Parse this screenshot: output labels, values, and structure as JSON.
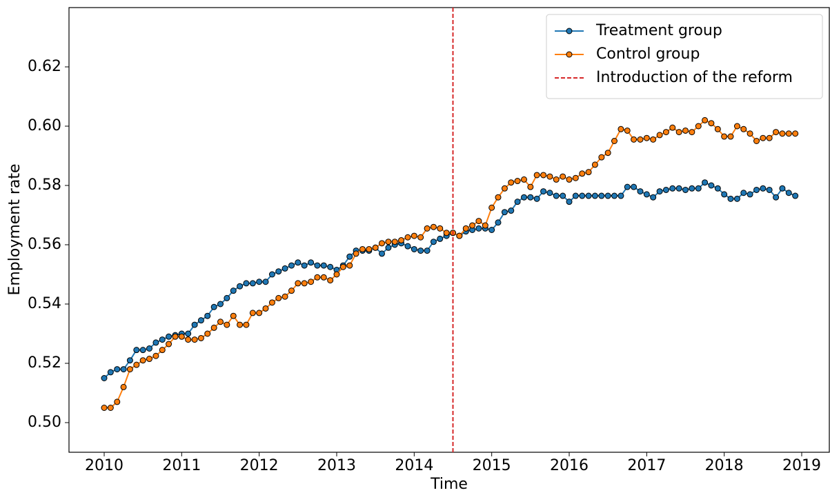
{
  "chart_data": {
    "type": "line",
    "x_label": "Time",
    "y_label": "Employment rate",
    "x": [
      2010,
      2010.083,
      2010.167,
      2010.25,
      2010.333,
      2010.417,
      2010.5,
      2010.583,
      2010.667,
      2010.75,
      2010.833,
      2010.917,
      2011,
      2011.083,
      2011.167,
      2011.25,
      2011.333,
      2011.417,
      2011.5,
      2011.583,
      2011.667,
      2011.75,
      2011.833,
      2011.917,
      2012,
      2012.083,
      2012.167,
      2012.25,
      2012.333,
      2012.417,
      2012.5,
      2012.583,
      2012.667,
      2012.75,
      2012.833,
      2012.917,
      2013,
      2013.083,
      2013.167,
      2013.25,
      2013.333,
      2013.417,
      2013.5,
      2013.583,
      2013.667,
      2013.75,
      2013.833,
      2013.917,
      2014,
      2014.083,
      2014.167,
      2014.25,
      2014.333,
      2014.417,
      2014.5,
      2014.583,
      2014.667,
      2014.75,
      2014.833,
      2014.917,
      2015,
      2015.083,
      2015.167,
      2015.25,
      2015.333,
      2015.417,
      2015.5,
      2015.583,
      2015.667,
      2015.75,
      2015.833,
      2015.917,
      2016,
      2016.083,
      2016.167,
      2016.25,
      2016.333,
      2016.417,
      2016.5,
      2016.583,
      2016.667,
      2016.75,
      2016.833,
      2016.917,
      2017,
      2017.083,
      2017.167,
      2017.25,
      2017.333,
      2017.417,
      2017.5,
      2017.583,
      2017.667,
      2017.75,
      2017.833,
      2017.917,
      2018,
      2018.083,
      2018.167,
      2018.25,
      2018.333,
      2018.417,
      2018.5,
      2018.583,
      2018.667,
      2018.75,
      2018.833,
      2018.917
    ],
    "series": [
      {
        "name": "Treatment group",
        "color": "#1f77b4",
        "values": [
          0.515,
          0.517,
          0.518,
          0.518,
          0.521,
          0.5245,
          0.5245,
          0.525,
          0.527,
          0.528,
          0.529,
          0.5295,
          0.53,
          0.53,
          0.533,
          0.5345,
          0.536,
          0.539,
          0.54,
          0.542,
          0.5445,
          0.546,
          0.547,
          0.547,
          0.5475,
          0.5475,
          0.55,
          0.551,
          0.552,
          0.553,
          0.554,
          0.553,
          0.554,
          0.553,
          0.553,
          0.5525,
          0.5515,
          0.553,
          0.556,
          0.558,
          0.558,
          0.558,
          0.559,
          0.557,
          0.559,
          0.56,
          0.5605,
          0.5595,
          0.5585,
          0.558,
          0.558,
          0.561,
          0.562,
          0.563,
          0.564,
          0.563,
          0.5645,
          0.565,
          0.5655,
          0.5655,
          0.565,
          0.5675,
          0.571,
          0.5715,
          0.5745,
          0.576,
          0.576,
          0.5755,
          0.578,
          0.5775,
          0.5765,
          0.5765,
          0.5745,
          0.5765,
          0.5765,
          0.5765,
          0.5765,
          0.5765,
          0.5765,
          0.5765,
          0.5765,
          0.5795,
          0.5795,
          0.578,
          0.577,
          0.576,
          0.578,
          0.5785,
          0.579,
          0.579,
          0.5785,
          0.579,
          0.579,
          0.581,
          0.58,
          0.579,
          0.577,
          0.5755,
          0.5755,
          0.5775,
          0.577,
          0.5785,
          0.579,
          0.5785,
          0.576,
          0.579,
          0.5775,
          0.5765
        ]
      },
      {
        "name": "Control group",
        "color": "#ff7f0e",
        "values": [
          0.505,
          0.505,
          0.507,
          0.512,
          0.518,
          0.5195,
          0.521,
          0.5215,
          0.5225,
          0.5245,
          0.5265,
          0.529,
          0.529,
          0.528,
          0.528,
          0.5285,
          0.53,
          0.532,
          0.534,
          0.533,
          0.536,
          0.533,
          0.533,
          0.537,
          0.537,
          0.5385,
          0.5405,
          0.542,
          0.5425,
          0.5445,
          0.547,
          0.547,
          0.5475,
          0.549,
          0.549,
          0.548,
          0.55,
          0.5525,
          0.553,
          0.557,
          0.5585,
          0.5585,
          0.559,
          0.5605,
          0.561,
          0.561,
          0.5615,
          0.5625,
          0.563,
          0.5625,
          0.5655,
          0.566,
          0.5655,
          0.564,
          0.564,
          0.563,
          0.5655,
          0.5665,
          0.568,
          0.5665,
          0.5725,
          0.576,
          0.579,
          0.581,
          0.5815,
          0.582,
          0.5795,
          0.5835,
          0.5835,
          0.583,
          0.582,
          0.583,
          0.582,
          0.5825,
          0.584,
          0.5845,
          0.587,
          0.5895,
          0.591,
          0.595,
          0.599,
          0.5985,
          0.5955,
          0.5955,
          0.596,
          0.5955,
          0.597,
          0.598,
          0.5995,
          0.598,
          0.5985,
          0.598,
          0.6,
          0.602,
          0.601,
          0.599,
          0.5965,
          0.5965,
          0.6,
          0.599,
          0.5975,
          0.595,
          0.596,
          0.596,
          0.598,
          0.5975,
          0.5975,
          0.5975
        ]
      }
    ],
    "vline": {
      "x": 2014.5,
      "label": "Introduction of the reform",
      "color": "#d62728"
    },
    "xlim": [
      2009.546,
      2019.356
    ],
    "xticks": [
      2010,
      2011,
      2012,
      2013,
      2014,
      2015,
      2016,
      2017,
      2018,
      2019
    ],
    "ylim": [
      0.49,
      0.64
    ],
    "yticks": [
      {
        "value": 0.5,
        "label": "0.50"
      },
      {
        "value": 0.52,
        "label": "0.52"
      },
      {
        "value": 0.54,
        "label": "0.54"
      },
      {
        "value": 0.56,
        "label": "0.56"
      },
      {
        "value": 0.58,
        "label": "0.58"
      },
      {
        "value": 0.6,
        "label": "0.60"
      },
      {
        "value": 0.62,
        "label": "0.62"
      }
    ],
    "legend": "upper right"
  }
}
